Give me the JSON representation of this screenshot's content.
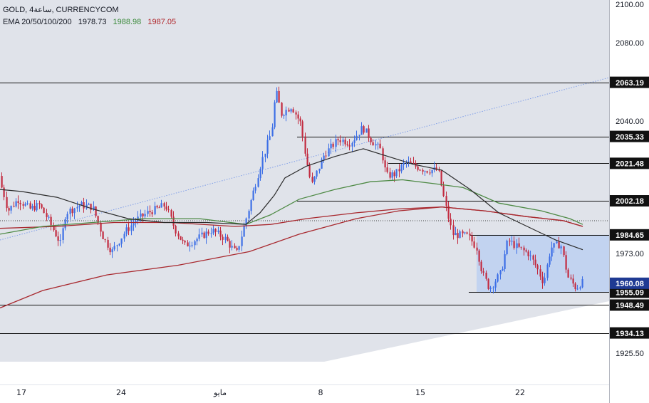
{
  "header": {
    "symbol": "GOLD, 4ساعة, CURRENCYCOM",
    "ema_label": "EMA 20/50/100/200",
    "ema_values": [
      "1978.73",
      "1988.98",
      "1987.05"
    ]
  },
  "colors": {
    "up": "#3d6fe6",
    "down": "#c22a3f",
    "bg": "#e0e3ea",
    "box": "#bcd0f1",
    "ema20": "#2b2b2b",
    "ema50": "#4e8a45",
    "ema100": "#a8282e",
    "ema200": "#a8282e",
    "trend_dotted": "#7f9ee8",
    "ema_text_green": "#3c8a3c",
    "ema_text_red": "#b0252a"
  },
  "chart_data": {
    "type": "candlestick",
    "title": "GOLD, 4ساعة, CURRENCYCOM",
    "ylim": [
      1918,
      2103
    ],
    "y_ticks": [
      "2100.00",
      "2080.00",
      "2040.00",
      "1973.00",
      "1925.50"
    ],
    "x_ticks": [
      "17",
      "24",
      "مايو",
      "8",
      "15",
      "22"
    ],
    "levels": [
      {
        "label": "2063.19",
        "value": 2063.19
      },
      {
        "label": "2035.33",
        "value": 2035.33
      },
      {
        "label": "2021.48",
        "value": 2021.48
      },
      {
        "label": "2002.18",
        "value": 2002.18
      },
      {
        "label": "1984.65",
        "value": 1984.65
      },
      {
        "label": "1955.09",
        "value": 1955.09
      },
      {
        "label": "1948.49",
        "value": 1948.49
      },
      {
        "label": "1934.13",
        "value": 1934.13
      }
    ],
    "last_price": {
      "label": "1960.08",
      "value": 1960.08
    },
    "range_box": {
      "top": 1984.65,
      "bottom": 1955.09
    },
    "ema_series": [
      {
        "name": "EMA 20",
        "value": 1978.73
      },
      {
        "name": "EMA 50",
        "value": 1988.98
      },
      {
        "name": "EMA 100",
        "value": 1987.05
      }
    ]
  }
}
